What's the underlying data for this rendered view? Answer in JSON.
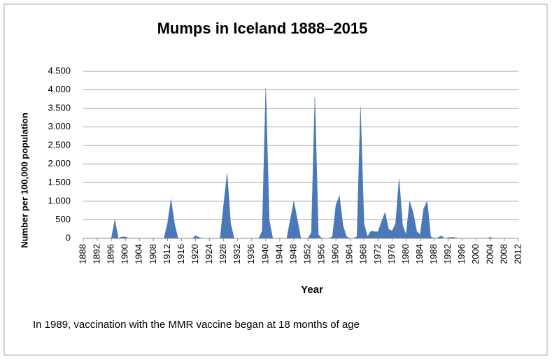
{
  "chart_data": {
    "type": "area",
    "title": "Mumps in Iceland 1888–2015",
    "y_label": "Number per 100,000 population",
    "x_label": "Year",
    "note": "In 1989, vaccination with the MMR vaccine began at 18 months of age",
    "color": "#4a78b8",
    "grid": true,
    "x": [
      1888,
      1889,
      1890,
      1891,
      1892,
      1893,
      1894,
      1895,
      1896,
      1897,
      1898,
      1899,
      1900,
      1901,
      1902,
      1903,
      1904,
      1905,
      1906,
      1907,
      1908,
      1909,
      1910,
      1911,
      1912,
      1913,
      1914,
      1915,
      1916,
      1917,
      1918,
      1919,
      1920,
      1921,
      1922,
      1923,
      1924,
      1925,
      1926,
      1927,
      1928,
      1929,
      1930,
      1931,
      1932,
      1933,
      1934,
      1935,
      1936,
      1937,
      1938,
      1939,
      1940,
      1941,
      1942,
      1943,
      1944,
      1945,
      1946,
      1947,
      1948,
      1949,
      1950,
      1951,
      1952,
      1953,
      1954,
      1955,
      1956,
      1957,
      1958,
      1959,
      1960,
      1961,
      1962,
      1963,
      1964,
      1965,
      1966,
      1967,
      1968,
      1969,
      1970,
      1971,
      1972,
      1973,
      1974,
      1975,
      1976,
      1977,
      1978,
      1979,
      1980,
      1981,
      1982,
      1983,
      1984,
      1985,
      1986,
      1987,
      1988,
      1989,
      1990,
      1991,
      1992,
      1993,
      1994,
      1995,
      1996,
      1997,
      1998,
      1999,
      2000,
      2001,
      2002,
      2003,
      2004,
      2005,
      2006,
      2007,
      2008,
      2009,
      2010,
      2011,
      2012
    ],
    "values": [
      0,
      0,
      0,
      0,
      0,
      0,
      0,
      0,
      0,
      500,
      0,
      40,
      40,
      0,
      0,
      0,
      0,
      0,
      0,
      0,
      0,
      0,
      0,
      0,
      400,
      1050,
      400,
      0,
      0,
      0,
      0,
      0,
      70,
      30,
      0,
      0,
      0,
      0,
      0,
      0,
      900,
      1750,
      400,
      0,
      0,
      0,
      0,
      0,
      0,
      0,
      0,
      200,
      4050,
      500,
      0,
      0,
      0,
      0,
      0,
      500,
      1000,
      500,
      0,
      0,
      0,
      150,
      3800,
      100,
      0,
      0,
      0,
      50,
      900,
      1150,
      350,
      50,
      0,
      0,
      50,
      3550,
      400,
      50,
      200,
      180,
      180,
      450,
      700,
      250,
      200,
      400,
      1600,
      350,
      100,
      1000,
      700,
      200,
      100,
      800,
      1000,
      50,
      0,
      20,
      70,
      0,
      20,
      30,
      20,
      0,
      0,
      0,
      0,
      0,
      0,
      0,
      0,
      0,
      30,
      0,
      0,
      0,
      0,
      0,
      0,
      0,
      0
    ],
    "xlim": [
      1888,
      2012
    ],
    "xticks": [
      1888,
      1892,
      1896,
      1900,
      1904,
      1908,
      1912,
      1916,
      1920,
      1924,
      1928,
      1932,
      1936,
      1940,
      1944,
      1948,
      1952,
      1956,
      1960,
      1964,
      1968,
      1972,
      1976,
      1980,
      1984,
      1988,
      1992,
      1996,
      2000,
      2004,
      2008,
      2012
    ],
    "ylim": [
      0,
      4500
    ],
    "yticks": [
      0,
      500,
      {
        "value": 1000,
        "label": "1.000"
      },
      {
        "value": 1500,
        "label": "1.500"
      },
      {
        "value": 2000,
        "label": "2.000"
      },
      {
        "value": 2500,
        "label": "2.500"
      },
      {
        "value": 3000,
        "label": "3.000"
      },
      {
        "value": 3500,
        "label": "3.500"
      },
      {
        "value": 4000,
        "label": "4.000"
      },
      {
        "value": 4500,
        "label": "4.500"
      }
    ]
  }
}
